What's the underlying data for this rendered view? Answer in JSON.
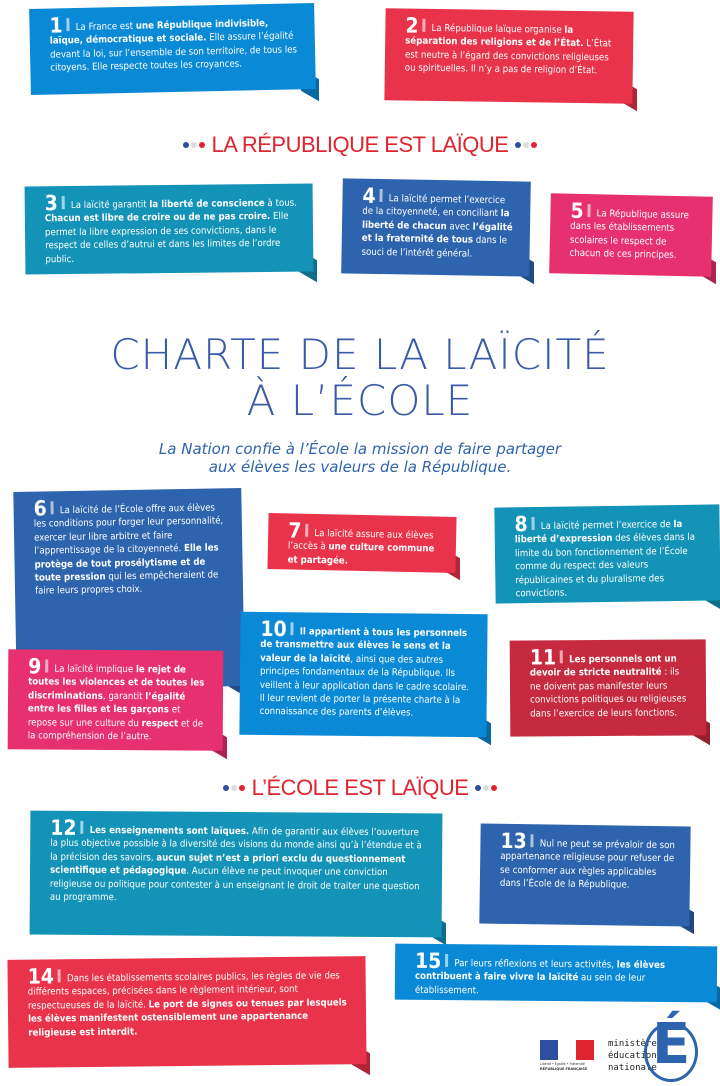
{
  "colors": {
    "blue": "#0a8ad6",
    "red": "#e8334a",
    "teal": "#1493b8",
    "navy": "#2e63ae",
    "pink": "#e6306f",
    "darkred": "#c62a3e",
    "heading": "#e0242f",
    "title": "#3b5ba9"
  },
  "section1": "LA RÉPUBLIQUE EST LAÏQUE",
  "title_line1": "CHARTE DE LA LAÏCITÉ",
  "title_line2": "À L’ÉCOLE",
  "subtitle_line1": "La Nation confie à l’École la mission de faire partager",
  "subtitle_line2": "aux élèves les valeurs de la République.",
  "section2": "L’ÉCOLE EST LAÏQUE",
  "cards": [
    {
      "num": "1",
      "color": "blue",
      "segs": [
        [
          "La France est ",
          0
        ],
        [
          "une République indivisible, laïque, démocratique et sociale.",
          1
        ],
        [
          " Elle assure l’égalité devant la loi, sur l’ensemble de son territoire, de tous les citoyens. Elle respecte toutes les croyances.",
          0
        ]
      ]
    },
    {
      "num": "2",
      "color": "red",
      "segs": [
        [
          "La République laïque organise ",
          0
        ],
        [
          "la séparation des religions et de l’État.",
          1
        ],
        [
          " L’État est neutre à l’égard des convictions religieuses ou spirituelles. Il n’y a pas de religion d’État.",
          0
        ]
      ]
    },
    {
      "num": "3",
      "color": "teal",
      "segs": [
        [
          "La laïcité garantit ",
          0
        ],
        [
          "la liberté de conscience",
          1
        ],
        [
          " à tous. ",
          0
        ],
        [
          "Chacun est libre de croire ou de ne pas croire.",
          1
        ],
        [
          " Elle permet la libre expression de ses convictions, dans le respect de celles d’autrui et dans les limites de l’ordre public.",
          0
        ]
      ]
    },
    {
      "num": "4",
      "color": "navy",
      "segs": [
        [
          "La laïcité permet l’exercice de la citoyenneté, en conciliant ",
          0
        ],
        [
          "la liberté de chacun",
          1
        ],
        [
          " avec ",
          0
        ],
        [
          "l’égalité et la fraternité de tous",
          1
        ],
        [
          " dans le souci de l’intérêt général.",
          0
        ]
      ]
    },
    {
      "num": "5",
      "color": "pink",
      "segs": [
        [
          "La République assure dans les établissements scolaires le respect de chacun de ces principes.",
          0
        ]
      ]
    },
    {
      "num": "6",
      "color": "navy",
      "segs": [
        [
          "La laïcité de l’École offre aux élèves les conditions pour forger leur personnalité, exercer leur libre arbitre et faire l’apprentissage de la citoyenneté. ",
          0
        ],
        [
          "Elle les protège de tout prosélytisme et de toute pression",
          1
        ],
        [
          " qui les empêcheraient de faire leurs propres choix.",
          0
        ]
      ]
    },
    {
      "num": "7",
      "color": "red",
      "segs": [
        [
          "La laïcité assure aux élèves l’accès à ",
          0
        ],
        [
          "une culture commune et partagée.",
          1
        ]
      ]
    },
    {
      "num": "8",
      "color": "teal",
      "segs": [
        [
          "La laïcité permet l’exercice de ",
          0
        ],
        [
          "la liberté d’expression",
          1
        ],
        [
          " des élèves dans la limite du bon fonctionnement de l’École comme du respect des valeurs républicaines et du pluralisme des convictions.",
          0
        ]
      ]
    },
    {
      "num": "9",
      "color": "pink",
      "segs": [
        [
          "La laïcité implique ",
          0
        ],
        [
          "le rejet de toutes les violences et de toutes les discriminations",
          1
        ],
        [
          ", garantit ",
          0
        ],
        [
          "l’égalité entre les filles et les garçons",
          1
        ],
        [
          " et repose sur une culture du ",
          0
        ],
        [
          "respect",
          1
        ],
        [
          " et de la compréhension de l’autre.",
          0
        ]
      ]
    },
    {
      "num": "10",
      "color": "blue",
      "segs": [
        [
          "Il appartient à tous les personnels de transmettre aux élèves le sens et la valeur de la laïcité",
          1
        ],
        [
          ", ainsi que des autres principes fondamentaux de la République. Ils veillent à leur application dans le cadre scolaire. Il leur revient de porter la présente charte à la connaissance des parents d’élèves.",
          0
        ]
      ]
    },
    {
      "num": "11",
      "color": "darkred",
      "segs": [
        [
          "Les personnels ont un devoir de stricte neutralité",
          1
        ],
        [
          " : ils ne doivent pas manifester leurs convictions politiques ou religieuses dans l’exercice de leurs fonctions.",
          0
        ]
      ]
    },
    {
      "num": "12",
      "color": "teal",
      "segs": [
        [
          "Les enseignements sont laïques.",
          1
        ],
        [
          " Afin de garantir aux élèves l’ouverture la plus objective possible à la diversité des visions du monde ainsi qu’à l’étendue et à la précision des savoirs, ",
          0
        ],
        [
          "aucun sujet n’est a priori exclu du questionnement scientifique et pédagogique",
          1
        ],
        [
          ". Aucun élève ne peut invoquer une conviction religieuse ou politique pour contester à un enseignant le droit de traiter une question au programme.",
          0
        ]
      ]
    },
    {
      "num": "13",
      "color": "navy",
      "segs": [
        [
          "Nul ne peut se prévaloir de son appartenance religieuse pour refuser de se conformer aux règles applicables dans l’École de la République.",
          0
        ]
      ]
    },
    {
      "num": "14",
      "color": "red",
      "segs": [
        [
          "Dans les établissements scolaires publics, les règles de vie des différents espaces, précisées dans le règlement intérieur, sont respectueuses de la laïcité. ",
          0
        ],
        [
          "Le port de signes ou tenues par lesquels les élèves manifestent ostensiblement une appartenance religieuse est interdit.",
          1
        ]
      ]
    },
    {
      "num": "15",
      "color": "blue",
      "segs": [
        [
          "Par leurs réflexions et leurs activités, ",
          0
        ],
        [
          "les élèves contribuent à faire vivre la laïcité",
          1
        ],
        [
          " au sein de leur établissement.",
          0
        ]
      ]
    }
  ],
  "footer": {
    "marianne_motto": "Liberté • Égalité • Fraternité",
    "marianne_label": "RÉPUBLIQUE FRANÇAISE",
    "ministry_line1": "ministère",
    "ministry_line2": "éducation",
    "ministry_line3": "nationale",
    "ministry_logo_letter": "É"
  }
}
